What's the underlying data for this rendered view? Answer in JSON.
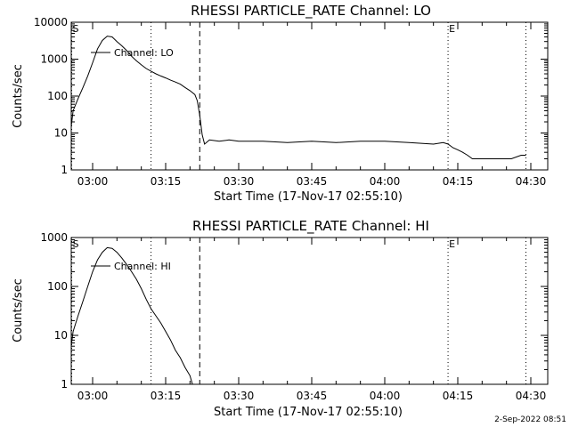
{
  "chart_data": [
    {
      "type": "line",
      "title": "RHESSI PARTICLE_RATE Channel: LO",
      "xlabel": "Start Time (17-Nov-17 02:55:10)",
      "ylabel": "Counts/sec",
      "yscale": "log",
      "ylim": [
        1,
        10000
      ],
      "xlim": [
        "02:55:10",
        "04:36:00"
      ],
      "x_ticks": [
        "03:00",
        "03:15",
        "03:30",
        "03:45",
        "04:00",
        "04:15",
        "04:30"
      ],
      "y_ticks": [
        "1",
        "10",
        "100",
        "1000",
        "10000"
      ],
      "legend": {
        "label": "Channel: LO",
        "position": "top-left"
      },
      "markers": [
        {
          "label": "S",
          "time": "02:55:10",
          "style": "dotted"
        },
        {
          "time": "03:12",
          "style": "dotted"
        },
        {
          "time": "03:22",
          "style": "dashed"
        },
        {
          "label": "E",
          "time": "04:13",
          "style": "dotted"
        },
        {
          "time": "04:29",
          "style": "dotted"
        }
      ],
      "series": [
        {
          "x": [
            "02:55:10",
            "02:56",
            "02:57",
            "02:58",
            "02:59",
            "03:00",
            "03:01",
            "03:02",
            "03:03",
            "03:04",
            "03:05",
            "03:06",
            "03:07",
            "03:08",
            "03:09",
            "03:10",
            "03:11",
            "03:12",
            "03:13",
            "03:14",
            "03:15",
            "03:16",
            "03:17",
            "03:18",
            "03:19",
            "03:20",
            "03:21",
            "03:21:30",
            "03:22",
            "03:22:30",
            "03:23",
            "03:24",
            "03:26",
            "03:28",
            "03:30",
            "03:35",
            "03:40",
            "03:45",
            "03:50",
            "03:55",
            "04:00",
            "04:05",
            "04:10",
            "04:12",
            "04:13",
            "04:14",
            "04:15",
            "04:16",
            "04:17",
            "04:18",
            "04:20",
            "04:22",
            "04:24",
            "04:26",
            "04:28",
            "04:29"
          ],
          "y": [
            15,
            40,
            85,
            170,
            350,
            800,
            1900,
            3200,
            4200,
            4000,
            3000,
            2300,
            1700,
            1200,
            900,
            700,
            560,
            470,
            400,
            350,
            310,
            270,
            240,
            210,
            170,
            140,
            110,
            75,
            30,
            9,
            5,
            6.5,
            6,
            6.5,
            6,
            6,
            5.5,
            6,
            5.5,
            6,
            6,
            5.5,
            5,
            5.5,
            5,
            4,
            3.5,
            3,
            2.5,
            2,
            2,
            2,
            2,
            2,
            2.5,
            2.5
          ]
        }
      ]
    },
    {
      "type": "line",
      "title": "RHESSI PARTICLE_RATE Channel: HI",
      "xlabel": "Start Time (17-Nov-17 02:55:10)",
      "ylabel": "Counts/sec",
      "yscale": "log",
      "ylim": [
        1,
        1000
      ],
      "xlim": [
        "02:55:10",
        "04:36:00"
      ],
      "x_ticks": [
        "03:00",
        "03:15",
        "03:30",
        "03:45",
        "04:00",
        "04:15",
        "04:30"
      ],
      "y_ticks": [
        "1",
        "10",
        "100",
        "1000"
      ],
      "legend": {
        "label": "Channel: HI",
        "position": "top-left"
      },
      "markers": [
        {
          "label": "S",
          "time": "02:55:10",
          "style": "dotted"
        },
        {
          "time": "03:12",
          "style": "dotted"
        },
        {
          "time": "03:22",
          "style": "dashed"
        },
        {
          "label": "E",
          "time": "04:13",
          "style": "dotted"
        },
        {
          "time": "04:29",
          "style": "dotted"
        }
      ],
      "series": [
        {
          "x": [
            "02:55:10",
            "02:56",
            "02:57",
            "02:58",
            "02:59",
            "03:00",
            "03:01",
            "03:02",
            "03:03",
            "03:04",
            "03:05",
            "03:06",
            "03:07",
            "03:08",
            "03:09",
            "03:10",
            "03:11",
            "03:12",
            "03:13",
            "03:14",
            "03:15",
            "03:16",
            "03:17",
            "03:18",
            "03:19",
            "03:20",
            "03:20:30"
          ],
          "y": [
            6,
            12,
            25,
            50,
            100,
            200,
            350,
            500,
            620,
            600,
            500,
            380,
            280,
            200,
            140,
            90,
            55,
            35,
            25,
            18,
            12,
            8,
            5,
            3.5,
            2.2,
            1.5,
            1
          ]
        }
      ]
    }
  ],
  "footer": {
    "timestamp": "2-Sep-2022 08:51"
  }
}
